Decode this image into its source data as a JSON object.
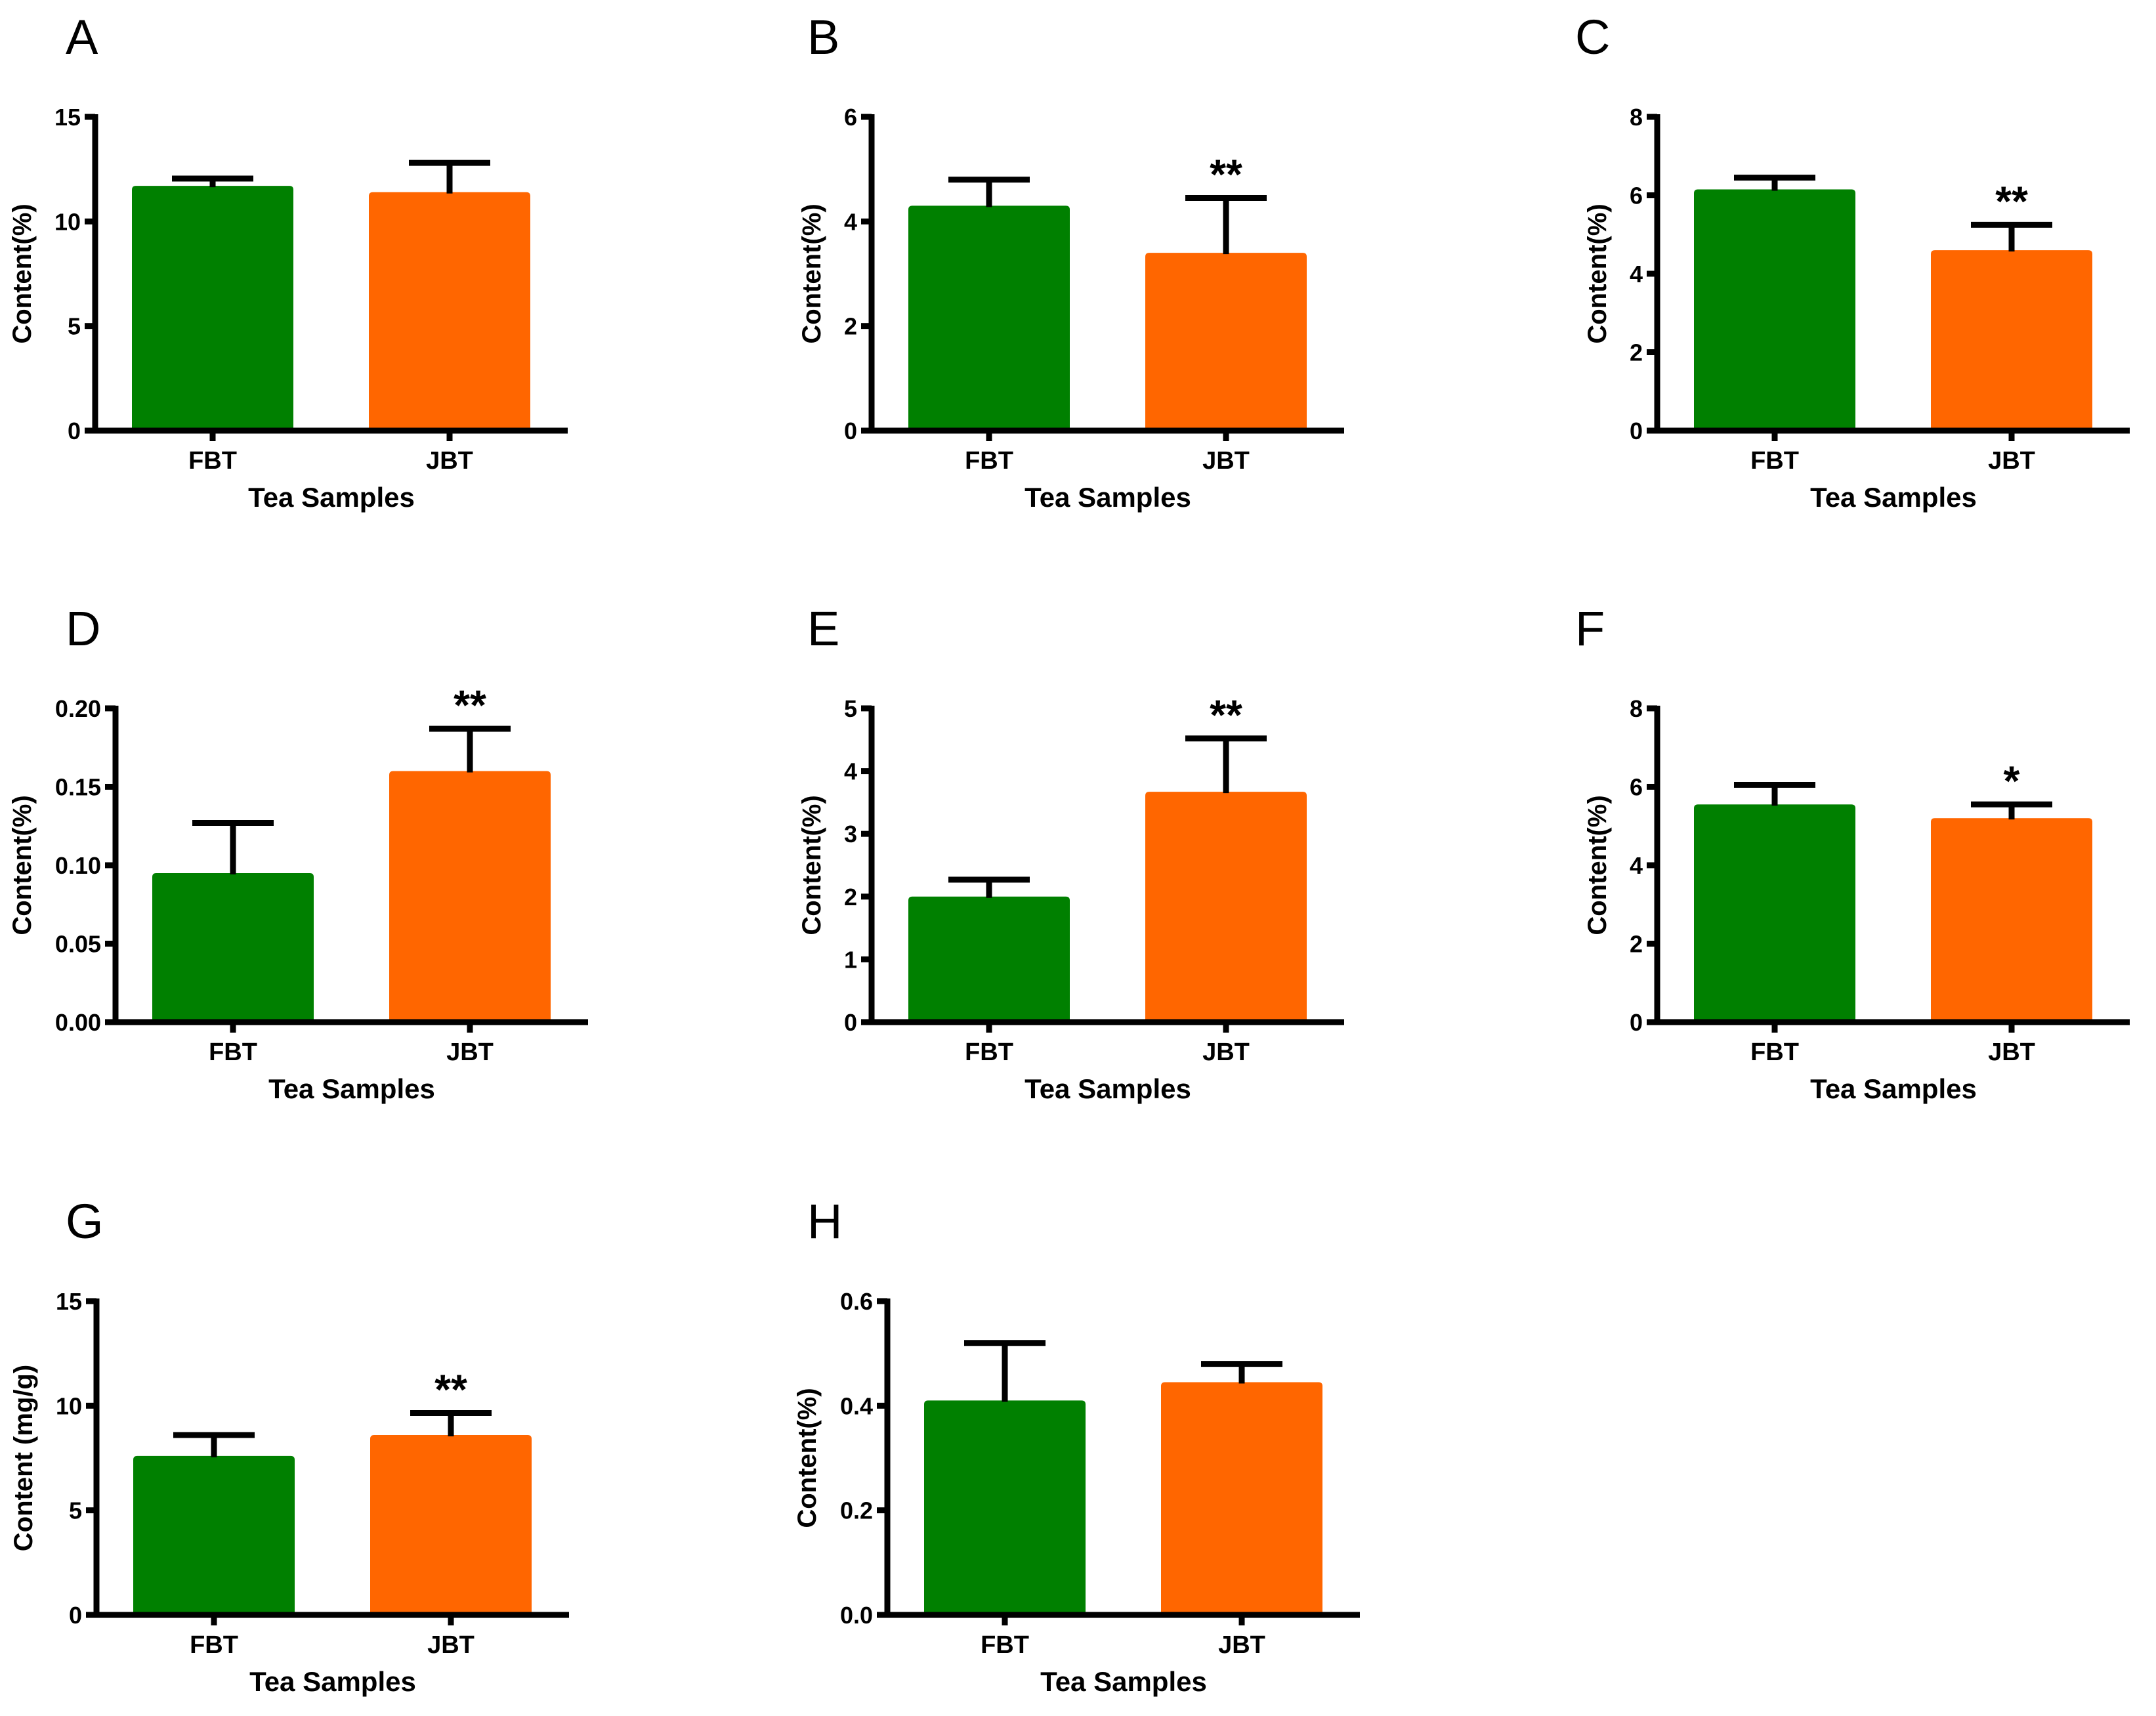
{
  "figure": {
    "background": "#FFFFFF",
    "axis_color": "#000000",
    "bar_colors": {
      "FBT": "#008000",
      "JBT": "#FF6600"
    },
    "significance_color": "#000000"
  },
  "chart_data": [
    {
      "panel": "A",
      "type": "bar",
      "categories": [
        "FBT",
        "JBT"
      ],
      "values": [
        11.7,
        11.4
      ],
      "errors": [
        0.35,
        1.4
      ],
      "significance": [
        "",
        ""
      ],
      "title": "",
      "xlabel": "Tea Samples",
      "ylabel": "Content(%)",
      "ylim": [
        0,
        15
      ],
      "yticks": [
        0,
        5,
        10,
        15
      ],
      "ytick_labels": [
        "0",
        "5",
        "10",
        "15"
      ],
      "grid": false,
      "legend": "none"
    },
    {
      "panel": "B",
      "type": "bar",
      "categories": [
        "FBT",
        "JBT"
      ],
      "values": [
        4.3,
        3.4
      ],
      "errors": [
        0.5,
        1.05
      ],
      "significance": [
        "",
        "**"
      ],
      "title": "",
      "xlabel": "Tea Samples",
      "ylabel": "Content(%)",
      "ylim": [
        0,
        6
      ],
      "yticks": [
        0,
        2,
        4,
        6
      ],
      "ytick_labels": [
        "0",
        "2",
        "4",
        "6"
      ],
      "grid": false,
      "legend": "none"
    },
    {
      "panel": "C",
      "type": "bar",
      "categories": [
        "FBT",
        "JBT"
      ],
      "values": [
        6.15,
        4.6
      ],
      "errors": [
        0.3,
        0.65
      ],
      "significance": [
        "",
        "**"
      ],
      "title": "",
      "xlabel": "Tea Samples",
      "ylabel": "Content(%)",
      "ylim": [
        0,
        8
      ],
      "yticks": [
        0,
        2,
        4,
        6,
        8
      ],
      "ytick_labels": [
        "0",
        "2",
        "4",
        "6",
        "8"
      ],
      "grid": false,
      "legend": "none"
    },
    {
      "panel": "D",
      "type": "bar",
      "categories": [
        "FBT",
        "JBT"
      ],
      "values": [
        0.095,
        0.16
      ],
      "errors": [
        0.032,
        0.027
      ],
      "significance": [
        "",
        "**"
      ],
      "title": "",
      "xlabel": "Tea Samples",
      "ylabel": "Content(%)",
      "ylim": [
        0,
        0.2
      ],
      "yticks": [
        0,
        0.05,
        0.1,
        0.15,
        0.2
      ],
      "ytick_labels": [
        "0.00",
        "0.05",
        "0.10",
        "0.15",
        "0.20"
      ],
      "grid": false,
      "legend": "none"
    },
    {
      "panel": "E",
      "type": "bar",
      "categories": [
        "FBT",
        "JBT"
      ],
      "values": [
        2.0,
        3.67
      ],
      "errors": [
        0.27,
        0.85
      ],
      "significance": [
        "",
        "**"
      ],
      "title": "",
      "xlabel": "Tea Samples",
      "ylabel": "Content(%)",
      "ylim": [
        0,
        5
      ],
      "yticks": [
        0,
        1,
        2,
        3,
        4,
        5
      ],
      "ytick_labels": [
        "0",
        "1",
        "2",
        "3",
        "4",
        "5"
      ],
      "grid": false,
      "legend": "none"
    },
    {
      "panel": "F",
      "type": "bar",
      "categories": [
        "FBT",
        "JBT"
      ],
      "values": [
        5.55,
        5.2
      ],
      "errors": [
        0.5,
        0.35
      ],
      "significance": [
        "",
        "*"
      ],
      "title": "",
      "xlabel": "Tea Samples",
      "ylabel": "Content(%)",
      "ylim": [
        0,
        8
      ],
      "yticks": [
        0,
        2,
        4,
        6,
        8
      ],
      "ytick_labels": [
        "0",
        "2",
        "4",
        "6",
        "8"
      ],
      "grid": false,
      "legend": "none"
    },
    {
      "panel": "G",
      "type": "bar",
      "categories": [
        "FBT",
        "JBT"
      ],
      "values": [
        7.6,
        8.6
      ],
      "errors": [
        1.0,
        1.05
      ],
      "significance": [
        "",
        "**"
      ],
      "title": "",
      "xlabel": "Tea Samples",
      "ylabel": "Content (mg/g)",
      "ylim": [
        0,
        15
      ],
      "yticks": [
        0,
        5,
        10,
        15
      ],
      "ytick_labels": [
        "0",
        "5",
        "10",
        "15"
      ],
      "grid": false,
      "legend": "none"
    },
    {
      "panel": "H",
      "type": "bar",
      "categories": [
        "FBT",
        "JBT"
      ],
      "values": [
        0.41,
        0.445
      ],
      "errors": [
        0.11,
        0.035
      ],
      "significance": [
        "",
        ""
      ],
      "title": "",
      "xlabel": "Tea Samples",
      "ylabel": "Content(%)",
      "ylim": [
        0,
        0.6
      ],
      "yticks": [
        0,
        0.2,
        0.4,
        0.6
      ],
      "ytick_labels": [
        "0.0",
        "0.2",
        "0.4",
        "0.6"
      ],
      "grid": false,
      "legend": "none"
    }
  ]
}
